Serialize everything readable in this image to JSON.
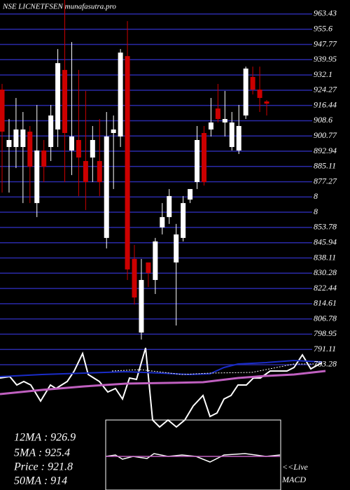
{
  "chart_data": {
    "type": "candlestick",
    "title": "NSE LICNETFSEN munafasutra.pro",
    "open": [
      924.6,
      895.1,
      895.1,
      895.1,
      903.0,
      866.3,
      893.3,
      895.1,
      904.1,
      934.7,
      893.3,
      898.7,
      887.9,
      889.7,
      887.9,
      848.4,
      902.3,
      900.5,
      941.8,
      837.6,
      799.8,
      835.8,
      826.8,
      853.8,
      859.1,
      835.8,
      848.4,
      868.1,
      877.1,
      902.3,
      904.1,
      914.9,
      907.7,
      895.1,
      893.3,
      911.3,
      931.1,
      924.6,
      918.5
    ],
    "high": [
      927.5,
      909.5,
      920.3,
      913.1,
      905.9,
      916.7,
      898.7,
      916.7,
      945.4,
      970.6,
      949.0,
      934.7,
      923.9,
      905.9,
      909.5,
      913.1,
      911.3,
      945.4,
      959.8,
      844.8,
      837.6,
      835.8,
      848.4,
      866.3,
      873.5,
      855.6,
      869.9,
      873.5,
      905.9,
      905.9,
      920.3,
      927.5,
      923.9,
      913.1,
      916.7,
      936.4,
      936.4,
      936.4,
      919.2
    ],
    "low": [
      871.7,
      871.7,
      884.3,
      866.3,
      866.3,
      859.1,
      877.1,
      887.9,
      895.1,
      877.1,
      880.7,
      869.9,
      862.7,
      877.1,
      869.9,
      843.0,
      873.5,
      895.1,
      826.8,
      814.2,
      796.2,
      823.2,
      819.6,
      850.2,
      855.6,
      803.4,
      846.6,
      866.3,
      873.5,
      875.3,
      900.5,
      907.7,
      900.5,
      893.3,
      891.5,
      909.5,
      922.1,
      913.1,
      911.3
    ],
    "close": [
      903.0,
      898.7,
      904.1,
      904.1,
      885.0,
      893.3,
      885.0,
      911.3,
      938.2,
      902.3,
      900.5,
      889.7,
      877.1,
      898.7,
      877.1,
      900.5,
      904.1,
      943.6,
      832.2,
      817.8,
      826.8,
      830.4,
      846.6,
      859.1,
      869.9,
      850.2,
      866.3,
      873.5,
      898.7,
      877.1,
      907.7,
      909.5,
      909.5,
      907.7,
      905.9,
      935.4,
      924.6,
      920.3,
      917.4
    ],
    "up_color": "#ffffff",
    "down_color": "#cc0000",
    "grid_color": "#2a2aa8",
    "ylim": [
      780.04,
      970.62
    ],
    "yticks": [
      963.43,
      955.6,
      947.77,
      939.95,
      932.1,
      924.27,
      916.44,
      908.6,
      900.77,
      892.94,
      885.11,
      877.27,
      {
        "value": 869.44,
        "label": "8"
      },
      {
        "value": 861.61,
        "label": "8"
      },
      853.78,
      845.94,
      838.11,
      830.28,
      822.44,
      814.61,
      806.78,
      798.95,
      791.11,
      783.28
    ],
    "grid": true,
    "info": [
      "12MA : 926.9",
      "5MA : 925.4",
      "Price  : 921.8",
      "50MA : 914"
    ],
    "live": "<<Live",
    "macd": "MACD"
  }
}
